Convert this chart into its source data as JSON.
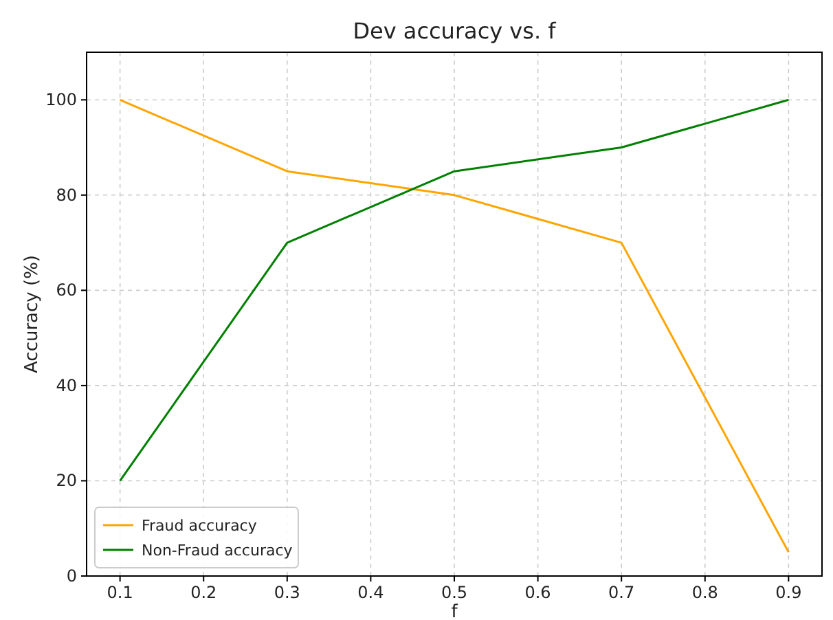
{
  "chart_data": {
    "type": "line",
    "title": "Dev accuracy vs. f",
    "xlabel": "f",
    "ylabel": "Accuracy (%)",
    "x": [
      0.1,
      0.3,
      0.5,
      0.7,
      0.9
    ],
    "series": [
      {
        "name": "Fraud accuracy",
        "color": "#ffa500",
        "values": [
          100,
          85,
          80,
          70,
          5
        ]
      },
      {
        "name": "Non-Fraud accuracy",
        "color": "#008000",
        "values": [
          20,
          70,
          85,
          90,
          100
        ]
      }
    ],
    "xlim": [
      0.06,
      0.94
    ],
    "xticks": [
      0.1,
      0.2,
      0.3,
      0.4,
      0.5,
      0.6,
      0.7,
      0.8,
      0.9
    ],
    "ylim": [
      0,
      110
    ],
    "yticks": [
      0,
      20,
      40,
      60,
      80,
      100
    ],
    "grid": true,
    "legend": "bottom left",
    "marker": "none",
    "line_style": "solid"
  }
}
